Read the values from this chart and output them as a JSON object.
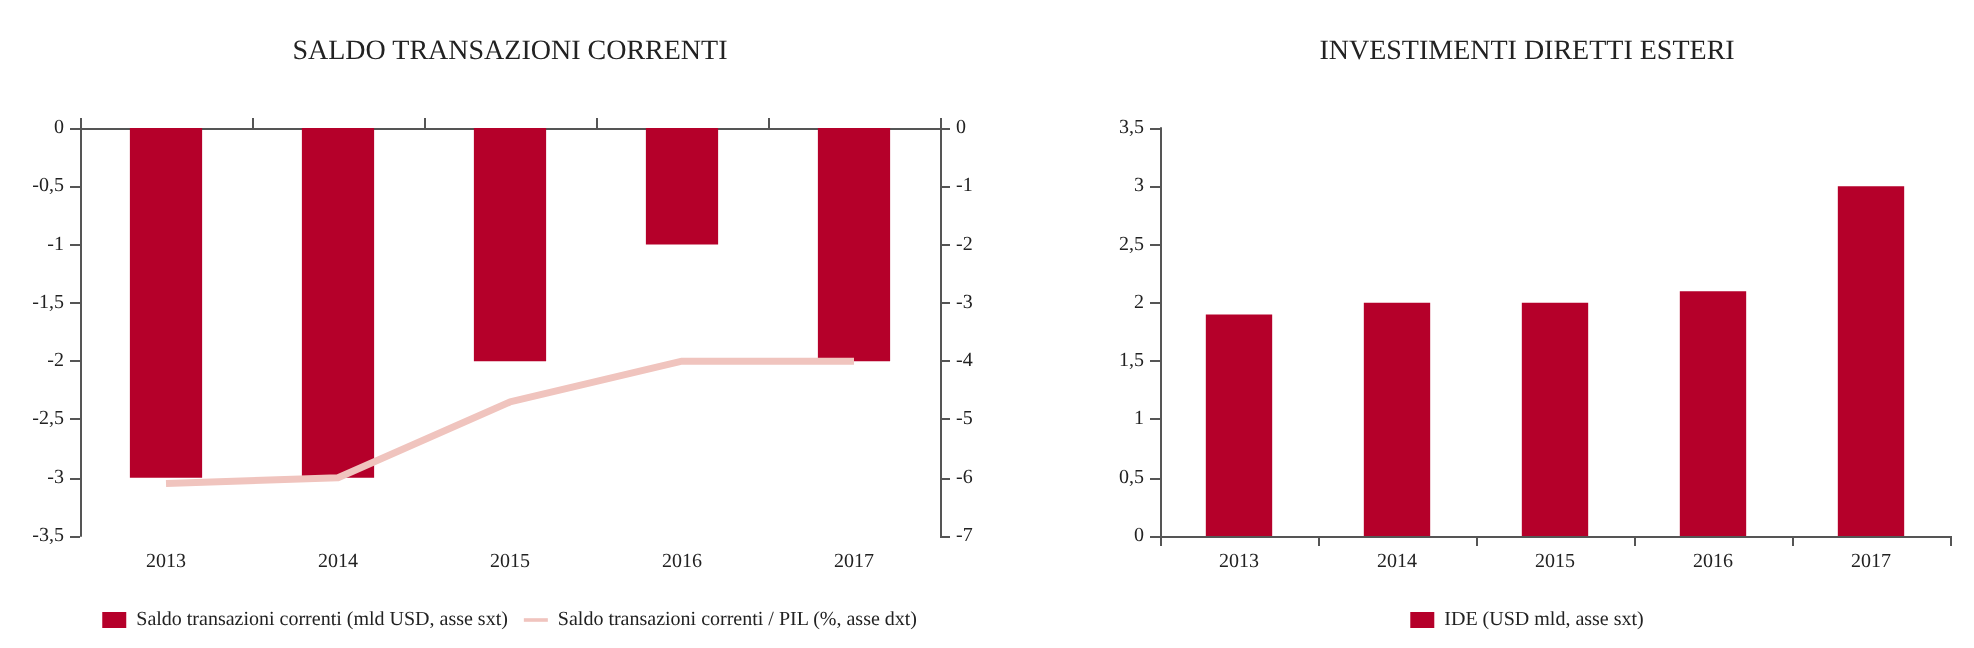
{
  "chart_data": [
    {
      "type": "bar",
      "title": "SALDO TRANSAZIONI CORRENTI",
      "categories": [
        "2013",
        "2014",
        "2015",
        "2016",
        "2017"
      ],
      "series": [
        {
          "name": "Saldo transazioni correnti (mld USD, asse sxt)",
          "color": "#b5002a",
          "values": [
            -3,
            -3,
            -2,
            -1,
            -2
          ]
        },
        {
          "name": "Saldo transazioni correnti / PIL (%, asse dxt)",
          "type": "line",
          "axis": "y2",
          "color": "#f0c4be",
          "marker": "none",
          "values": [
            -6.1,
            -6.0,
            -4.7,
            -4.0,
            -4.0
          ]
        }
      ],
      "ylim": [
        -3.5,
        0
      ],
      "yticks": [
        {
          "value": -3.5,
          "label": "-3,5"
        },
        -3,
        {
          "value": -2.5,
          "label": "-2,5"
        },
        -2,
        {
          "value": -1.5,
          "label": "-1,5"
        },
        -1,
        {
          "value": -0.5,
          "label": "-0,5"
        },
        0
      ],
      "y2lim": [
        -7,
        0
      ],
      "y2ticks": [
        -7,
        -6,
        -5,
        -4,
        -3,
        -2,
        -1,
        0
      ],
      "grid": false,
      "legend": "bottom"
    },
    {
      "type": "bar",
      "title": "INVESTIMENTI DIRETTI ESTERI",
      "categories": [
        "2013",
        "2014",
        "2015",
        "2016",
        "2017"
      ],
      "series": [
        {
          "name": "IDE (USD mld, asse sxt)",
          "color": "#b5002a",
          "values": [
            1.9,
            2.0,
            2.0,
            2.1,
            3.0
          ]
        }
      ],
      "ylim": [
        0,
        3.5
      ],
      "yticks": [
        0,
        {
          "value": 0.5,
          "label": "0,5"
        },
        1,
        {
          "value": 1.5,
          "label": "1,5"
        },
        2,
        {
          "value": 2.5,
          "label": "2,5"
        },
        3,
        {
          "value": 3.5,
          "label": "3,5"
        }
      ],
      "grid": false,
      "legend": "bottom"
    }
  ]
}
